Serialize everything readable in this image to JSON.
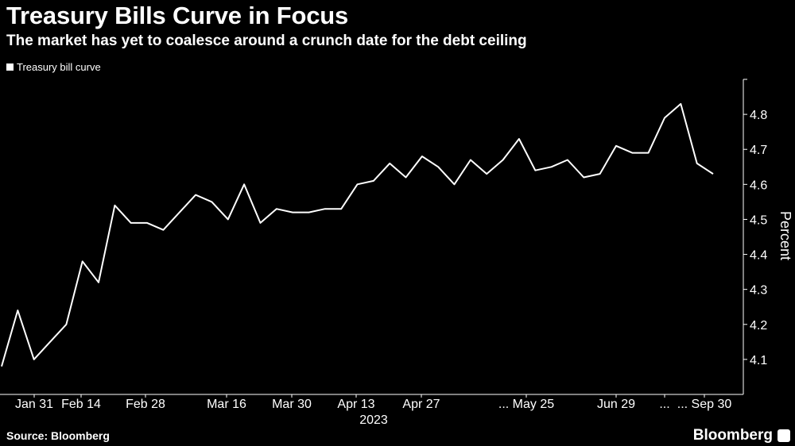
{
  "header": {
    "title": "Treasury Bills Curve in Focus",
    "subtitle": "The market has yet to coalesce around a crunch date for the debt ceiling"
  },
  "footer": {
    "source": "Source: Bloomberg",
    "brand": "Bloomberg"
  },
  "colors": {
    "background": "#000000",
    "line": "#ffffff",
    "text": "#ffffff"
  },
  "chart_data": {
    "type": "line",
    "title": "Treasury Bills Curve in Focus",
    "subtitle": "The market has yet to coalesce around a crunch date for the debt ceiling",
    "ylabel": "Percent",
    "ylim": [
      4.0,
      4.9
    ],
    "y_ticks": [
      4.1,
      4.2,
      4.3,
      4.4,
      4.5,
      4.6,
      4.7,
      4.8
    ],
    "y_axis_position": "right",
    "grid": false,
    "legend_position": "top-left",
    "x_tick_labels": [
      "Jan 31",
      "Feb 14",
      "Feb 28",
      "Mar 16",
      "Mar 30",
      "Apr 13",
      "Apr 27",
      "... May 25",
      "Jun 29",
      "...",
      "... Sep 30"
    ],
    "x_sublabel": "2023",
    "series": [
      {
        "name": "Treasury bill curve",
        "values": [
          4.08,
          4.24,
          4.1,
          4.15,
          4.2,
          4.38,
          4.32,
          4.54,
          4.49,
          4.49,
          4.47,
          4.52,
          4.57,
          4.55,
          4.5,
          4.6,
          4.49,
          4.53,
          4.52,
          4.52,
          4.53,
          4.53,
          4.6,
          4.61,
          4.66,
          4.62,
          4.68,
          4.65,
          4.6,
          4.67,
          4.63,
          4.67,
          4.73,
          4.64,
          4.65,
          4.67,
          4.62,
          4.63,
          4.71,
          4.69,
          4.69,
          4.79,
          4.83,
          4.66,
          4.63
        ]
      }
    ]
  }
}
